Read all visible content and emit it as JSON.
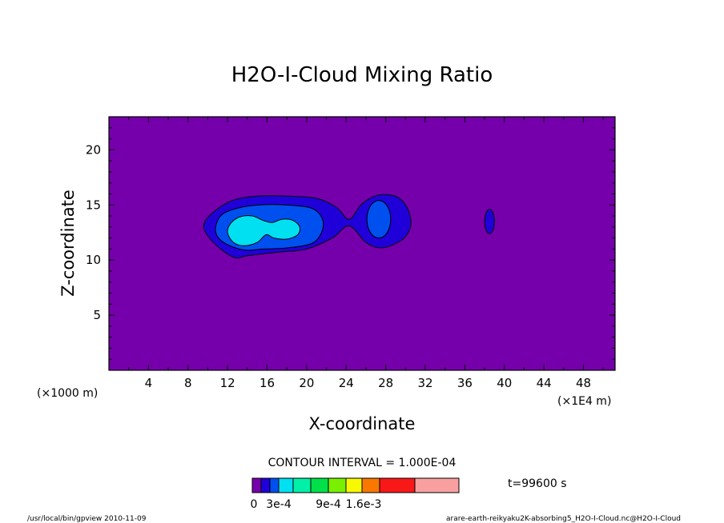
{
  "chart_data": {
    "type": "contour",
    "title": "H2O-I-Cloud Mixing Ratio",
    "xlabel": "X-coordinate",
    "ylabel": "Z-coordinate",
    "x_ticks": [
      "4",
      "8",
      "12",
      "16",
      "20",
      "24",
      "28",
      "32",
      "36",
      "40",
      "44",
      "48"
    ],
    "y_ticks": [
      "5",
      "10",
      "15",
      "20"
    ],
    "x_tick_values": [
      4,
      8,
      12,
      16,
      20,
      24,
      28,
      32,
      36,
      40,
      44,
      48
    ],
    "y_tick_values": [
      5,
      10,
      15,
      20
    ],
    "xlim": [
      0,
      51.2
    ],
    "ylim": [
      0,
      23
    ],
    "x_scale_left": "(×1000 m)",
    "x_scale_right": "(×1E4 m)",
    "contour_interval": "CONTOUR INTERVAL = 1.000E-04",
    "time_label": "t=99600 s",
    "colorbar_labels": [
      "0",
      "3e-4",
      "9e-4",
      "1.6e-3"
    ],
    "colorbar_colors": [
      "#7500ab",
      "#2000d8",
      "#0050f0",
      "#00e0f0",
      "#00f0a8",
      "#00e048",
      "#78f000",
      "#f8f800",
      "#f87800",
      "#f81818",
      "#f8a0a0"
    ],
    "levels": [
      {
        "level": "1e-4",
        "color": "#2000d8",
        "regions": [
          {
            "points": [
              [
                9.6,
                13.2
              ],
              [
                10.5,
                14.3
              ],
              [
                12.5,
                15.4
              ],
              [
                15,
                15.8
              ],
              [
                18,
                15.8
              ],
              [
                21,
                15.6
              ],
              [
                23,
                14.8
              ],
              [
                24.3,
                13.7
              ],
              [
                25.6,
                15.1
              ],
              [
                27.3,
                15.9
              ],
              [
                29.2,
                15.7
              ],
              [
                30.3,
                14.5
              ],
              [
                30.5,
                13
              ],
              [
                29.6,
                11.8
              ],
              [
                27.6,
                11.1
              ],
              [
                26,
                11.6
              ],
              [
                24.3,
                13.1
              ],
              [
                22.6,
                12
              ],
              [
                20,
                11
              ],
              [
                17,
                10.7
              ],
              [
                14,
                10.4
              ],
              [
                12.8,
                10.2
              ],
              [
                11.3,
                11
              ],
              [
                10,
                12.2
              ]
            ]
          },
          {
            "points": [
              [
                38.5,
                13.5
              ]
            ],
            "ellipse": [
              0.5,
              1.1
            ]
          }
        ]
      },
      {
        "level": "2e-4",
        "color": "#0050f0",
        "regions": [
          {
            "points": [
              [
                10.8,
                13
              ],
              [
                11.4,
                14.1
              ],
              [
                13,
                14.7
              ],
              [
                15.3,
                15
              ],
              [
                17.8,
                15
              ],
              [
                20.5,
                14.7
              ],
              [
                21.6,
                13.7
              ],
              [
                21.5,
                12.5
              ],
              [
                20.5,
                11.5
              ],
              [
                18,
                11.1
              ],
              [
                15.5,
                11
              ],
              [
                13.8,
                10.9
              ],
              [
                12,
                11.4
              ],
              [
                11,
                12.1
              ]
            ]
          },
          {
            "points": [
              [
                27.3,
                13.7
              ]
            ],
            "ellipse": [
              1.2,
              1.7
            ]
          }
        ]
      },
      {
        "level": "3e-4",
        "color": "#00e0f0",
        "regions": [
          {
            "points": [
              [
                12,
                12.5
              ],
              [
                12.3,
                13.3
              ],
              [
                13.2,
                13.9
              ],
              [
                14.5,
                14
              ],
              [
                15.6,
                13.6
              ],
              [
                16.5,
                13.4
              ],
              [
                17.5,
                13.7
              ],
              [
                18.6,
                13.6
              ],
              [
                19.3,
                13
              ],
              [
                19.1,
                12.3
              ],
              [
                18,
                11.9
              ],
              [
                16.7,
                12
              ],
              [
                15.9,
                12.3
              ],
              [
                15,
                11.6
              ],
              [
                13.7,
                11.3
              ],
              [
                12.6,
                11.6
              ]
            ]
          }
        ]
      }
    ]
  },
  "footer": {
    "left": "/usr/local/bin/gpview  2010-11-09",
    "right": "arare-earth-reikyaku2K-absorbing5_H2O-I-Cloud.nc@H2O-I-Cloud"
  }
}
